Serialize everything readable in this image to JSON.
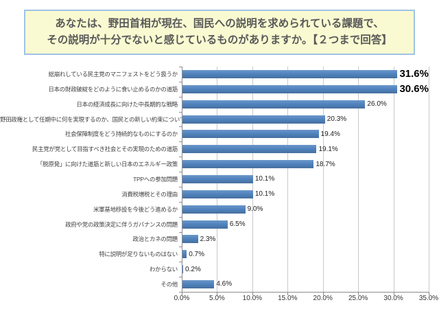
{
  "title": {
    "line1": "あなたは、野田首相が現在、国民への説明を求められている課題で、",
    "line2": "その説明が十分でないと感じているものがありますか。【２つまで回答】"
  },
  "chart_data": {
    "type": "bar",
    "orientation": "horizontal",
    "title": "あなたは、野田首相が現在、国民への説明を求められている課題で、その説明が十分でないと感じているものがありますか。【２つまで回答】",
    "categories": [
      "総崩れしている民主党のマニフェストをどう扱うか",
      "日本の財政破綻をどのように食い止めるのかの道筋",
      "日本の経済成長に向けた中長期的な戦略",
      "野田政権として任期中に何を実現するのか、国民との新しい約束について",
      "社会保障制度をどう持続的なものにするのか",
      "民主党が党として目指すべき社会とその実現のための道筋",
      "「脱原発」に向けた道筋と新しい日本のエネルギー政策",
      "TPPへの参加問題",
      "消費税増税とその理由",
      "米軍基地移設を今後どう進めるか",
      "政府や党の政策決定に伴うガバナンスの問題",
      "政治とカネの問題",
      "特に説明が足りないものはない",
      "わからない",
      "その他"
    ],
    "values": [
      31.6,
      30.6,
      26.0,
      20.3,
      19.4,
      19.1,
      18.7,
      10.1,
      10.1,
      9.0,
      6.5,
      2.3,
      0.7,
      0.2,
      4.6
    ],
    "value_labels": [
      "31.6%",
      "30.6%",
      "26.0%",
      "20.3%",
      "19.4%",
      "19.1%",
      "18.7%",
      "10.1%",
      "10.1%",
      "9.0%",
      "6.5%",
      "2.3%",
      "0.7%",
      "0.2%",
      "4.6%"
    ],
    "emphasized_indices": [
      0,
      1
    ],
    "xlim": [
      0,
      35
    ],
    "x_ticks": [
      "0.0%",
      "5.0%",
      "10.0%",
      "15.0%",
      "20.0%",
      "25.0%",
      "30.0%",
      "35.0%"
    ],
    "grid": true,
    "legend": false,
    "xlabel": "",
    "ylabel": ""
  },
  "colors": {
    "bar": "#4f81bd",
    "title_bg": "#fafad2",
    "title_border": "#9dc3e6",
    "title_text": "#595959",
    "gridline": "#c9c9c9",
    "axis": "#8c8c8c",
    "label_text": "#3f3f3f"
  }
}
